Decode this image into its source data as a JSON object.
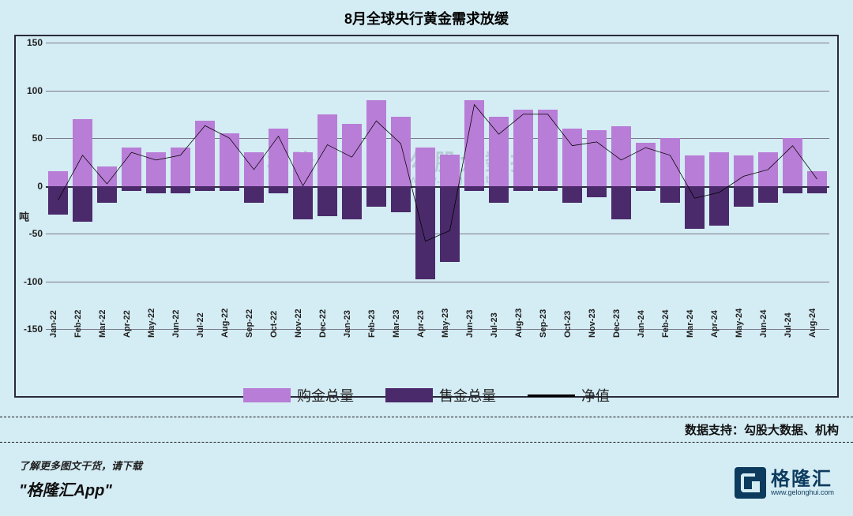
{
  "title": "8月全球央行黄金需求放缓",
  "title_fontsize": 18,
  "chart": {
    "type": "bar+line",
    "background_color": "#d4ecf4",
    "border_color": "#2a2a3a",
    "grid_color": "#7a7a8a",
    "ylim": [
      -150,
      150
    ],
    "ytick_step": 50,
    "yticks": [
      -150,
      -100,
      -50,
      0,
      50,
      100,
      150
    ],
    "ylabel": "吨",
    "ylabel_fontsize": 13,
    "xtick_fontsize": 11,
    "ytick_fontsize": 12,
    "categories": [
      "Jan-22",
      "Feb-22",
      "Mar-22",
      "Apr-22",
      "May-22",
      "Jun-22",
      "Jul-22",
      "Aug-22",
      "Sep-22",
      "Oct-22",
      "Nov-22",
      "Dec-22",
      "Jan-23",
      "Feb-23",
      "Mar-23",
      "Apr-23",
      "May-23",
      "Jun-23",
      "Jul-23",
      "Aug-23",
      "Sep-23",
      "Oct-23",
      "Nov-23",
      "Dec-23",
      "Jan-24",
      "Feb-24",
      "Mar-24",
      "Apr-24",
      "May-24",
      "Jun-24",
      "Jul-24",
      "Aug-24"
    ],
    "series": {
      "buy": {
        "label": "购金总量",
        "color": "#b87dd6",
        "values": [
          15,
          70,
          20,
          40,
          35,
          40,
          68,
          55,
          35,
          60,
          35,
          75,
          65,
          90,
          72,
          40,
          33,
          90,
          72,
          80,
          80,
          60,
          58,
          62,
          45,
          50,
          32,
          35,
          32,
          35,
          50,
          15
        ]
      },
      "sell": {
        "label": "售金总量",
        "color": "#4a2a6a",
        "values": [
          -30,
          -38,
          -18,
          -5,
          -8,
          -8,
          -5,
          -5,
          -18,
          -8,
          -35,
          -32,
          -35,
          -22,
          -28,
          -98,
          -80,
          -5,
          -18,
          -5,
          -5,
          -18,
          -12,
          -35,
          -5,
          -18,
          -45,
          -42,
          -22,
          -18,
          -8,
          -8
        ]
      },
      "net": {
        "label": "净值",
        "color": "#000000",
        "line_width": 2.5,
        "values": [
          -15,
          32,
          2,
          35,
          27,
          32,
          63,
          50,
          17,
          52,
          0,
          43,
          30,
          68,
          44,
          -58,
          -47,
          85,
          54,
          75,
          75,
          42,
          46,
          27,
          40,
          32,
          -13,
          -7,
          10,
          17,
          42,
          7
        ]
      }
    }
  },
  "legend_fontsize": 18,
  "data_support_label": "数据支持：勾股大数据、机构",
  "footer_hint": "了解更多图文干货，请下载",
  "footer_app": "\"格隆汇App\"",
  "logo_cn": "格隆汇",
  "logo_url": "www.gelonghui.com",
  "watermark_left": "格隆",
  "watermark_right": "勾股大数据",
  "watermark_sub": "www.gugudata"
}
